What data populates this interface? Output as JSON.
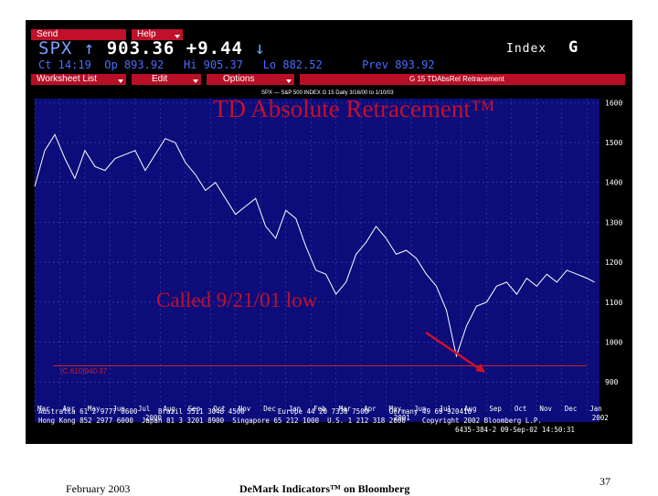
{
  "menu": {
    "send": "Send",
    "help": "Help"
  },
  "quote": {
    "symbol": "SPX",
    "indicator": "↑",
    "last": "903.36",
    "change": "+9.44",
    "change_mark": "↓",
    "type": "Index",
    "key": "G"
  },
  "quote_row2": {
    "time": "Ct 14:19",
    "open": "Op 893.92",
    "high": "Hi 905.37",
    "low": "Lo 882.52",
    "prev": "Prev 893.92"
  },
  "worksheet": {
    "list": "Worksheet List",
    "edit": "Edit",
    "options": "Options",
    "screen": "G 15   TDAbsRel Retracement"
  },
  "chart_title_small": "SPX — S&P 500 INDEX G 15 Daily 3/16/00 to 1/10/03",
  "overlay_title": "TD Absolute Retracement™",
  "annotation": "Called 9/21/01 low",
  "ref_level_label": "(C.610)940.37",
  "colors": {
    "panel_bg": "#000000",
    "plot_bg": "#0c0c7a",
    "price": "#ffffff",
    "accent": "#c4102a",
    "grid": "#4a4ab8"
  },
  "chart_data": {
    "type": "line",
    "y_axis": {
      "ticks": [
        "1600",
        "1500",
        "1400",
        "1300",
        "1200",
        "1100",
        "1000",
        "900"
      ],
      "ylim": [
        850,
        1610
      ],
      "position": "right"
    },
    "x_axis": {
      "months": [
        "Mar",
        "Apr",
        "May",
        "Jun",
        "Jul",
        "Aug",
        "Sep",
        "Oct",
        "Nov",
        "Dec",
        "Jan",
        "Feb",
        "Mar",
        "Apr",
        "May",
        "Jun",
        "Jul",
        "Aug",
        "Sep",
        "Oct",
        "Nov",
        "Dec",
        "Jan"
      ],
      "years": [
        "2000",
        "2001",
        "2002"
      ]
    },
    "series": [
      {
        "x": [
          0,
          0.4,
          0.8,
          1.2,
          1.6,
          2.0,
          2.4,
          2.8,
          3.2,
          3.6,
          4.0,
          4.4,
          4.8,
          5.2,
          5.6,
          6.0,
          6.4,
          6.8,
          7.2,
          7.6,
          8.0,
          8.4,
          8.8,
          9.2,
          9.6,
          10.0,
          10.4,
          10.8,
          11.2,
          11.6,
          12.0,
          12.4,
          12.8,
          13.2,
          13.6,
          14.0,
          14.4,
          14.8,
          15.2,
          15.6,
          16.0,
          16.4,
          16.8,
          17.2,
          17.6,
          18.0,
          18.4,
          18.8,
          19.2,
          19.6,
          20.0,
          20.4,
          20.8,
          21.2,
          21.6,
          22.0,
          22.3
        ],
        "y": [
          1390,
          1480,
          1520,
          1460,
          1410,
          1480,
          1440,
          1430,
          1460,
          1470,
          1480,
          1430,
          1470,
          1510,
          1500,
          1450,
          1420,
          1380,
          1400,
          1360,
          1320,
          1340,
          1360,
          1290,
          1260,
          1330,
          1310,
          1240,
          1180,
          1170,
          1120,
          1150,
          1220,
          1250,
          1290,
          1260,
          1220,
          1230,
          1210,
          1170,
          1140,
          1080,
          965,
          1040,
          1090,
          1100,
          1140,
          1150,
          1120,
          1160,
          1140,
          1170,
          1150,
          1180,
          1170,
          1160,
          1150
        ]
      }
    ],
    "reference_line": 940.37
  },
  "bottom": {
    "line1": "Australia 61 2 9777 8600     Brazil 5511 3048 4500        Europe 44 20 7330 7500     Germany 49 69 920410",
    "line2": "Hong Kong 852 2977 6000  Japan 81 3 3201 8900  Singapore 65 212 1000  U.S. 1 212 318 2000    Copyright 2002 Bloomberg L.P.",
    "line3": "6435-384-2 09-Sep-02 14:50:31"
  },
  "footer": {
    "date": "February 2003",
    "center": "DeMark Indicators™ on Bloomberg",
    "page": "37"
  }
}
